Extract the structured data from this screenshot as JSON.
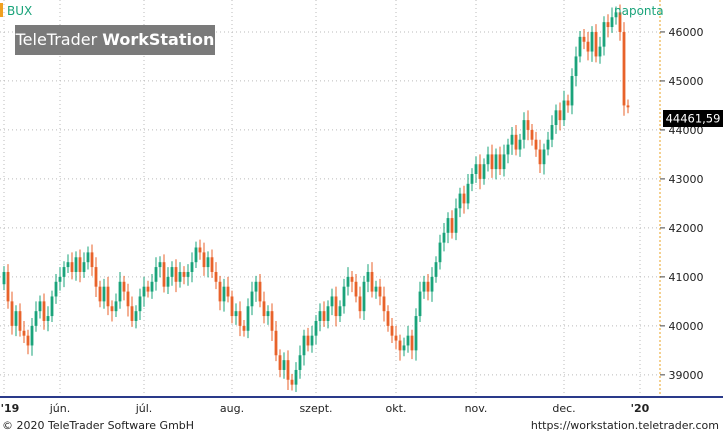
{
  "symbol": "BUX",
  "interval": "naponta",
  "watermark": {
    "brand": "TeleTrader",
    "product": "WorkStation"
  },
  "last_value": "44461,59",
  "footer": {
    "copyright": "© 2020  TeleTrader Software GmbH",
    "url": "https://workstation.teletrader.com"
  },
  "colors": {
    "up": "#1aa37a",
    "down": "#e8622a",
    "accent": "#f0a020",
    "interval": "#1aa37a"
  },
  "chart_data": {
    "type": "candlestick",
    "x_ticks": [
      "'19",
      "jún.",
      "júl.",
      "aug.",
      "szept.",
      "okt.",
      "nov.",
      "dec.",
      "'20"
    ],
    "y_ticks": [
      "39000",
      "40000",
      "41000",
      "42000",
      "43000",
      "44000",
      "45000",
      "46000"
    ],
    "ylim": [
      38650,
      46550
    ],
    "x_range": [
      0,
      163
    ],
    "x_tick_positions": [
      0,
      14,
      35,
      57,
      78,
      98,
      118,
      140,
      159
    ],
    "close": [
      41100,
      40500,
      40000,
      40300,
      39900,
      39800,
      39600,
      40000,
      40300,
      40500,
      40100,
      40200,
      40600,
      40900,
      41000,
      41200,
      41300,
      41100,
      41400,
      41100,
      41300,
      41500,
      41200,
      40800,
      40500,
      40800,
      40400,
      40300,
      40500,
      40900,
      40700,
      40400,
      40100,
      40300,
      40600,
      40800,
      40700,
      40900,
      41200,
      41300,
      40800,
      41000,
      41200,
      40900,
      41100,
      41000,
      41100,
      41300,
      41600,
      41500,
      41200,
      41400,
      41100,
      40900,
      40500,
      40800,
      40600,
      40200,
      40300,
      40000,
      39900,
      40400,
      40700,
      40900,
      40500,
      40200,
      40300,
      39900,
      39400,
      39100,
      39300,
      38900,
      38800,
      39100,
      39400,
      39800,
      39600,
      39800,
      40100,
      40300,
      40100,
      40400,
      40600,
      40200,
      40400,
      40800,
      41000,
      40900,
      40600,
      40300,
      40900,
      41100,
      40700,
      40800,
      40600,
      40300,
      40000,
      39800,
      39700,
      39500,
      39600,
      39800,
      39500,
      40200,
      40700,
      40900,
      40700,
      41000,
      41300,
      41700,
      41900,
      42200,
      41900,
      42400,
      42700,
      42500,
      42900,
      43100,
      43300,
      43000,
      43300,
      43500,
      43200,
      43500,
      43200,
      43500,
      43700,
      43900,
      43600,
      43800,
      44200,
      44000,
      43800,
      43600,
      43300,
      43600,
      43800,
      44100,
      44400,
      44200,
      44600,
      44500,
      45100,
      45500,
      45900,
      45800,
      45600,
      46000,
      45500,
      45700,
      46200,
      46100,
      46300,
      46400,
      46000,
      44500,
      44461
    ],
    "open_prev": true
  }
}
